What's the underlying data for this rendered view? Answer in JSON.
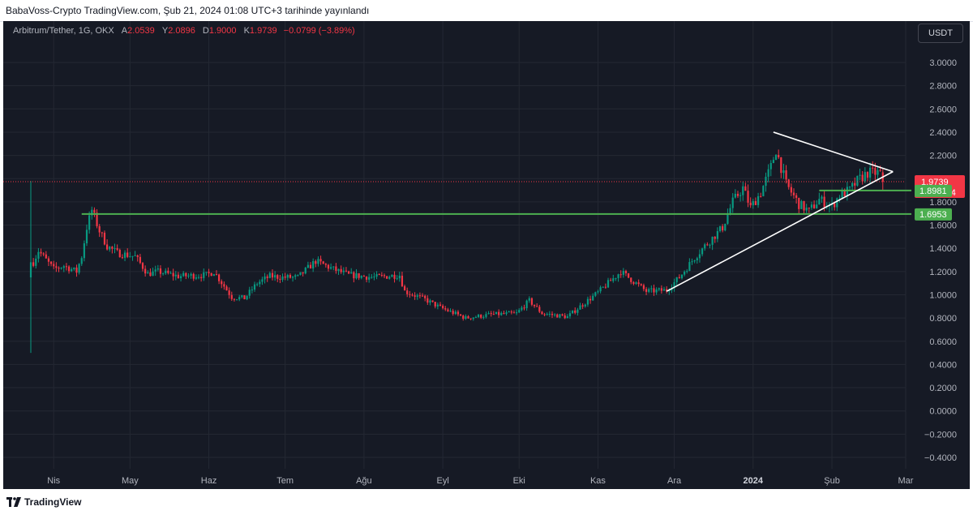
{
  "header": {
    "published_line": "BabaVoss-Crypto TradingView.com, Şub 21, 2024 01:08 UTC+3 tarihinde yayınlandı"
  },
  "legend": {
    "symbol": "Arbitrum/Tether, 1G, OKX",
    "open_key": "A",
    "open": "2.0539",
    "high_key": "Y",
    "high": "2.0896",
    "low_key": "D",
    "low": "1.9000",
    "close_key": "K",
    "close": "1.9739",
    "change": "−0.0799 (−3.89%)"
  },
  "currency_button": "USDT",
  "footer": {
    "brand": "TradingView"
  },
  "colors": {
    "background": "#161a25",
    "grid": "#242833",
    "up": "#089981",
    "down": "#f23645",
    "support": "#4caf50",
    "trendline": "#ffffff"
  },
  "chart_data": {
    "type": "candlestick",
    "price_scale": {
      "min": -0.4,
      "max": 3.0,
      "step": 0.2
    },
    "y_ticks": [
      "3.0000",
      "2.8000",
      "2.6000",
      "2.4000",
      "2.2000",
      "2.0000",
      "1.8000",
      "1.6000",
      "1.4000",
      "1.2000",
      "1.0000",
      "0.8000",
      "0.6000",
      "0.4000",
      "0.2000",
      "0.0000",
      "−0.2000",
      "−0.4000"
    ],
    "x_ticks": [
      {
        "label": "Nis",
        "date": "2023-04-01"
      },
      {
        "label": "May",
        "date": "2023-05-01"
      },
      {
        "label": "Haz",
        "date": "2023-06-01"
      },
      {
        "label": "Tem",
        "date": "2023-07-01"
      },
      {
        "label": "Ağu",
        "date": "2023-08-01"
      },
      {
        "label": "Eyl",
        "date": "2023-09-01"
      },
      {
        "label": "Eki",
        "date": "2023-10-01"
      },
      {
        "label": "Kas",
        "date": "2023-11-01"
      },
      {
        "label": "Ara",
        "date": "2023-12-01"
      },
      {
        "label": "2024",
        "date": "2024-01-01",
        "bold": true
      },
      {
        "label": "Şub",
        "date": "2024-02-01"
      },
      {
        "label": "Mar",
        "date": "2024-03-01"
      }
    ],
    "x_range": [
      "2023-03-23",
      "2024-03-01"
    ],
    "last_price": {
      "value": 1.9739,
      "label": "1.9739",
      "countdown": "01:51:54"
    },
    "support_levels": [
      {
        "value": 1.8981,
        "label": "1.8981",
        "from": "2024-01-27"
      },
      {
        "value": 1.6953,
        "label": "1.6953",
        "from": "2023-04-12"
      }
    ],
    "trendlines": [
      {
        "from": [
          "2024-01-09",
          2.4
        ],
        "to": [
          "2024-02-25",
          2.06
        ]
      },
      {
        "from": [
          "2023-11-28",
          1.03
        ],
        "to": [
          "2024-02-25",
          2.06
        ]
      }
    ],
    "anchors": [
      [
        "2023-03-23",
        1.15
      ],
      [
        "2023-03-24",
        1.28
      ],
      [
        "2023-03-26",
        1.38
      ],
      [
        "2023-03-29",
        1.3
      ],
      [
        "2023-04-01",
        1.22
      ],
      [
        "2023-04-05",
        1.25
      ],
      [
        "2023-04-10",
        1.2
      ],
      [
        "2023-04-12",
        1.33
      ],
      [
        "2023-04-14",
        1.58
      ],
      [
        "2023-04-16",
        1.73
      ],
      [
        "2023-04-19",
        1.55
      ],
      [
        "2023-04-22",
        1.42
      ],
      [
        "2023-04-26",
        1.36
      ],
      [
        "2023-05-03",
        1.33
      ],
      [
        "2023-05-08",
        1.18
      ],
      [
        "2023-05-12",
        1.2
      ],
      [
        "2023-05-20",
        1.16
      ],
      [
        "2023-05-31",
        1.17
      ],
      [
        "2023-06-03",
        1.2
      ],
      [
        "2023-06-10",
        0.98
      ],
      [
        "2023-06-15",
        0.97
      ],
      [
        "2023-06-20",
        1.1
      ],
      [
        "2023-06-25",
        1.16
      ],
      [
        "2023-06-30",
        1.15
      ],
      [
        "2023-07-06",
        1.15
      ],
      [
        "2023-07-13",
        1.29
      ],
      [
        "2023-07-20",
        1.22
      ],
      [
        "2023-07-26",
        1.17
      ],
      [
        "2023-08-05",
        1.15
      ],
      [
        "2023-08-15",
        1.17
      ],
      [
        "2023-08-17",
        1.03
      ],
      [
        "2023-08-25",
        0.96
      ],
      [
        "2023-08-31",
        0.89
      ],
      [
        "2023-09-10",
        0.8
      ],
      [
        "2023-09-20",
        0.83
      ],
      [
        "2023-09-30",
        0.84
      ],
      [
        "2023-10-05",
        0.95
      ],
      [
        "2023-10-10",
        0.84
      ],
      [
        "2023-10-20",
        0.81
      ],
      [
        "2023-10-25",
        0.9
      ],
      [
        "2023-11-01",
        1.02
      ],
      [
        "2023-11-10",
        1.2
      ],
      [
        "2023-11-20",
        1.03
      ],
      [
        "2023-11-28",
        1.04
      ],
      [
        "2023-12-03",
        1.15
      ],
      [
        "2023-12-09",
        1.32
      ],
      [
        "2023-12-13",
        1.42
      ],
      [
        "2023-12-20",
        1.58
      ],
      [
        "2023-12-24",
        1.8
      ],
      [
        "2023-12-28",
        1.92
      ],
      [
        "2023-12-31",
        1.75
      ],
      [
        "2024-01-04",
        1.88
      ],
      [
        "2024-01-08",
        2.1
      ],
      [
        "2024-01-10",
        2.25
      ],
      [
        "2024-01-14",
        1.95
      ],
      [
        "2024-01-19",
        1.78
      ],
      [
        "2024-01-23",
        1.72
      ],
      [
        "2024-01-27",
        1.82
      ],
      [
        "2024-02-01",
        1.76
      ],
      [
        "2024-02-04",
        1.86
      ],
      [
        "2024-02-08",
        1.9
      ],
      [
        "2024-02-11",
        1.98
      ],
      [
        "2024-02-15",
        2.05
      ],
      [
        "2024-02-18",
        2.05
      ],
      [
        "2024-02-20",
        2.05
      ],
      [
        "2024-02-21",
        1.97
      ]
    ],
    "last_candle": {
      "date": "2024-02-21",
      "open": 2.0539,
      "high": 2.0896,
      "low": 1.9,
      "close": 1.9739
    },
    "listing_candle": {
      "date": "2023-03-23",
      "open": 1.15,
      "high": 1.98,
      "low": 0.5,
      "close": 1.28
    }
  }
}
